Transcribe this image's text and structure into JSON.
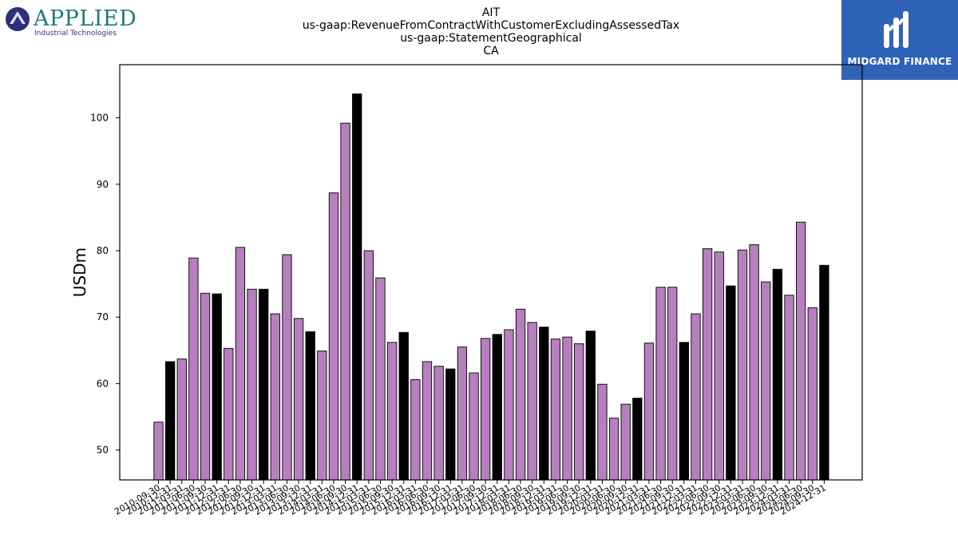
{
  "header": {
    "company_logo_text": "APPLIED",
    "company_logo_tagline": "Industrial Technologies",
    "brand_logo_text": "MIDGARD FINANCE"
  },
  "colors": {
    "bar_default": "#b77fbf",
    "bar_highlight": "#000000",
    "brand_blue": "#2f63b8",
    "company_teal": "#1f7a7a",
    "company_purple": "#3a2f86"
  },
  "chart_data": {
    "type": "bar",
    "title_lines": [
      "AIT",
      "us-gaap:RevenueFromContractWithCustomerExcludingAssessedTax",
      "us-gaap:StatementGeographical",
      "CA"
    ],
    "xlabel": "",
    "ylabel": "USDm",
    "ylim": [
      45.5,
      108
    ],
    "yticks": [
      50,
      60,
      70,
      80,
      90,
      100
    ],
    "grid": false,
    "categories": [
      "2010-09-30",
      "2010-12-31",
      "2011-03-31",
      "2011-06-30",
      "2011-09-30",
      "2011-12-31",
      "2012-03-31",
      "2012-06-30",
      "2012-09-30",
      "2012-12-31",
      "2013-03-31",
      "2013-06-30",
      "2013-09-30",
      "2013-12-31",
      "2014-03-31",
      "2014-06-30",
      "2014-09-30",
      "2014-12-31",
      "2015-03-31",
      "2015-06-30",
      "2015-09-30",
      "2015-12-31",
      "2016-03-31",
      "2016-06-30",
      "2016-09-30",
      "2016-12-31",
      "2017-03-31",
      "2017-06-30",
      "2017-09-30",
      "2017-12-31",
      "2018-03-31",
      "2018-06-30",
      "2018-09-30",
      "2018-12-31",
      "2019-03-31",
      "2019-06-30",
      "2019-09-30",
      "2019-12-31",
      "2020-03-31",
      "2020-06-30",
      "2020-09-30",
      "2020-12-31",
      "2021-03-31",
      "2021-06-30",
      "2021-09-30",
      "2021-12-31",
      "2022-03-31",
      "2022-06-30",
      "2022-09-30",
      "2022-12-31",
      "2023-03-31",
      "2023-06-30",
      "2023-09-30",
      "2023-12-31",
      "2024-03-31",
      "2024-06-30",
      "2024-09-30",
      "2024-12-31"
    ],
    "values": [
      54.2,
      63.3,
      63.7,
      78.9,
      73.6,
      73.5,
      65.3,
      80.5,
      74.2,
      74.2,
      70.5,
      79.4,
      69.8,
      67.8,
      64.9,
      88.7,
      99.2,
      103.6,
      80.0,
      75.9,
      66.2,
      67.7,
      60.6,
      63.3,
      62.6,
      62.2,
      65.5,
      61.6,
      66.8,
      67.4,
      68.1,
      71.2,
      69.2,
      68.5,
      66.7,
      67.0,
      66.0,
      67.9,
      59.9,
      54.8,
      56.9,
      57.8,
      66.1,
      74.5,
      74.5,
      66.2,
      70.5,
      80.3,
      79.8,
      74.7,
      80.1,
      80.9,
      75.3,
      77.2,
      73.3,
      84.3,
      71.4,
      77.8
    ],
    "highlight": [
      false,
      true,
      false,
      false,
      false,
      true,
      false,
      false,
      false,
      true,
      false,
      false,
      false,
      true,
      false,
      false,
      false,
      true,
      false,
      false,
      false,
      true,
      false,
      false,
      false,
      true,
      false,
      false,
      false,
      true,
      false,
      false,
      false,
      true,
      false,
      false,
      false,
      true,
      false,
      false,
      false,
      true,
      false,
      false,
      false,
      true,
      false,
      false,
      false,
      true,
      false,
      false,
      false,
      true,
      false,
      false,
      false,
      true
    ]
  }
}
